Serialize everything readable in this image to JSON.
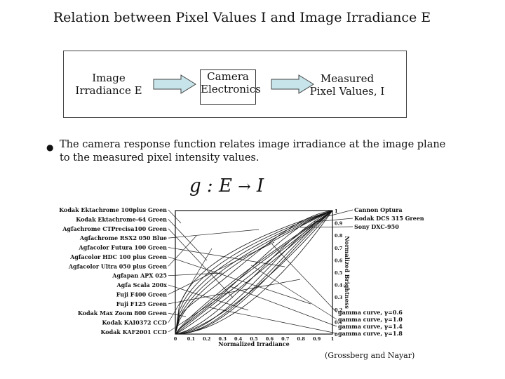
{
  "title": "Relation between Pixel Values I and Image Irradiance E",
  "flow": {
    "input_line1": "Image",
    "input_line2": "Irradiance E",
    "process_line1": "Camera",
    "process_line2": "Electronics",
    "output_line1": "Measured",
    "output_line2": "Pixel Values, I",
    "arrow_fill": "#c6e4ea"
  },
  "bullet": "The camera response function relates image irradiance at the image plane to the measured pixel intensity values.",
  "formula": {
    "g": "g",
    "colon": ":",
    "e": "E",
    "arrow": "→",
    "i": "I"
  },
  "figure": {
    "left_labels": [
      "Kodak Ektachrome 100plus Green",
      "Kodak Ektachrome-64 Green",
      "Agfachrome CTPrecisa100 Green",
      "Agfachrome RSX2 050 Blue",
      "Agfacolor Futura 100 Green",
      "Agfacolor HDC 100 plus Green",
      "Agfacolor Ultra 050 plus Green",
      "Agfapan APX 025",
      "Agfa Scala 200x",
      "Fuji F400 Green",
      "Fuji F125 Green",
      "Kodak Max Zoom 800 Green",
      "Kodak KAI0372 CCD",
      "Kodak KAF2001 CCD"
    ],
    "right_labels_top": [
      "Cannon Optura",
      "Kodak DCS 315 Green",
      "Sony DXC-950"
    ],
    "right_labels_bottom": [
      "gamma curve, γ=0.6",
      "gamma curve, γ=1.0",
      "gamma curve, γ=1.4",
      "gamma curve, γ=1.8"
    ],
    "x_ticks": [
      "0",
      "0.1",
      "0.2",
      "0.3",
      "0.4",
      "0.5",
      "0.6",
      "0.7",
      "0.8",
      "0.9",
      "1"
    ],
    "y_ticks": [
      "1",
      "0.9",
      "0.8",
      "0.7",
      "0.6",
      "0.5",
      "0.4",
      "0.3",
      "0.2",
      "0.1",
      "0"
    ],
    "x_label": "Normalized Irradiance",
    "y_label": "Normalized Brightness"
  },
  "citation": "(Grossberg and Nayar)"
}
